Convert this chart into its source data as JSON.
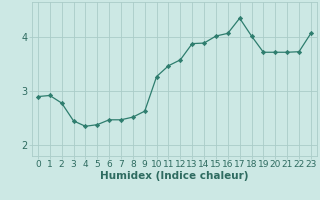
{
  "x": [
    0,
    1,
    2,
    3,
    4,
    5,
    6,
    7,
    8,
    9,
    10,
    11,
    12,
    13,
    14,
    15,
    16,
    17,
    18,
    19,
    20,
    21,
    22,
    23
  ],
  "y": [
    2.9,
    2.92,
    2.78,
    2.45,
    2.35,
    2.38,
    2.47,
    2.47,
    2.52,
    2.63,
    3.27,
    3.47,
    3.58,
    3.88,
    3.89,
    4.02,
    4.07,
    4.35,
    4.02,
    3.72,
    3.72,
    3.72,
    3.73,
    4.07
  ],
  "line_color": "#2e7d6e",
  "marker_color": "#2e7d6e",
  "bg_color": "#cce8e4",
  "grid_color": "#aaccc8",
  "tick_color": "#2e6b60",
  "xlabel": "Humidex (Indice chaleur)",
  "xlabel_color": "#2e6b60",
  "ylim": [
    1.8,
    4.65
  ],
  "yticks": [
    2,
    3,
    4
  ],
  "xticks": [
    0,
    1,
    2,
    3,
    4,
    5,
    6,
    7,
    8,
    9,
    10,
    11,
    12,
    13,
    14,
    15,
    16,
    17,
    18,
    19,
    20,
    21,
    22,
    23
  ],
  "font_size": 6.5,
  "xlabel_fontsize": 7.5,
  "figwidth": 3.2,
  "figheight": 2.0,
  "dpi": 100
}
